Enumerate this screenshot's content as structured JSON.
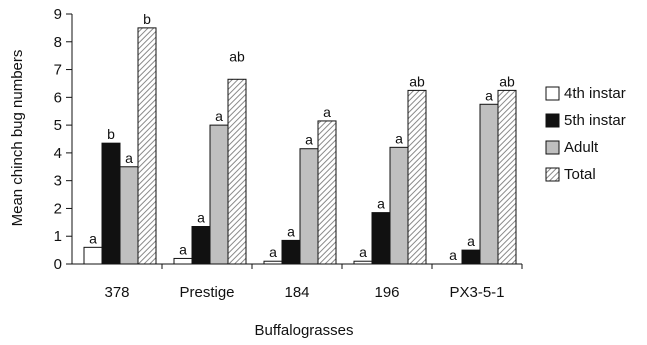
{
  "chart_data": {
    "type": "bar",
    "xlabel": "Buffalograsses",
    "ylabel": "Mean chinch bug numbers",
    "ylim": [
      0,
      9
    ],
    "yticks": [
      0,
      1,
      2,
      3,
      4,
      5,
      6,
      7,
      8,
      9
    ],
    "categories": [
      "378",
      "Prestige",
      "184",
      "196",
      "PX3-5-1"
    ],
    "legend_position": "right",
    "series": [
      {
        "name": "4th instar",
        "fill": "white",
        "color": "#ffffff",
        "values": [
          0.6,
          0.2,
          0.1,
          0.1,
          0.0
        ],
        "letters": [
          "a",
          "a",
          "a",
          "a",
          "a"
        ]
      },
      {
        "name": "5th instar",
        "fill": "solid",
        "color": "#111111",
        "values": [
          4.35,
          1.35,
          0.85,
          1.85,
          0.5
        ],
        "letters": [
          "b",
          "a",
          "a",
          "a",
          "a"
        ]
      },
      {
        "name": "Adult",
        "fill": "solid",
        "color": "#bfbfbf",
        "values": [
          3.5,
          5.0,
          4.15,
          4.2,
          5.75
        ],
        "letters": [
          "a",
          "a",
          "a",
          "a",
          "a"
        ]
      },
      {
        "name": "Total",
        "fill": "hatch",
        "color": "#d9d9d9",
        "values": [
          8.5,
          6.65,
          5.15,
          6.25,
          6.25
        ],
        "letters": [
          "b",
          "ab",
          "a",
          "ab",
          "ab"
        ]
      }
    ]
  }
}
